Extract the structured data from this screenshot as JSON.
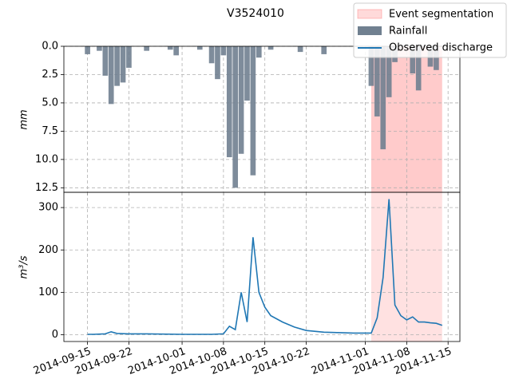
{
  "chart_data": [
    {
      "type": "bar",
      "title": "V3524010",
      "ylabel": "mm",
      "inverted": true,
      "ylim": [
        0,
        12.9
      ],
      "yticks": [
        {
          "value": 0,
          "label": "0.0"
        },
        2.5,
        {
          "value": 5,
          "label": "5.0"
        },
        7.5,
        {
          "value": 10,
          "label": "10.0"
        },
        12.5
      ],
      "xlim": [
        "2014-09-11",
        "2014-11-17"
      ],
      "xticks": [
        "2014-09-15",
        "2014-09-22",
        "2014-10-01",
        "2014-10-08",
        "2014-10-15",
        "2014-10-22",
        "2014-11-01",
        "2014-11-08",
        "2014-11-15"
      ],
      "grid": true,
      "event": {
        "name": "Event segmentation",
        "start": "2014-11-02",
        "end": "2014-11-14",
        "color": "#ff6b6b"
      },
      "x": [
        "2014-09-15",
        "2014-09-17",
        "2014-09-18",
        "2014-09-19",
        "2014-09-20",
        "2014-09-21",
        "2014-09-22",
        "2014-09-25",
        "2014-09-29",
        "2014-09-30",
        "2014-10-04",
        "2014-10-06",
        "2014-10-07",
        "2014-10-08",
        "2014-10-09",
        "2014-10-10",
        "2014-10-11",
        "2014-10-12",
        "2014-10-13",
        "2014-10-14",
        "2014-10-16",
        "2014-10-21",
        "2014-10-25",
        "2014-11-02",
        "2014-11-03",
        "2014-11-04",
        "2014-11-05",
        "2014-11-06",
        "2014-11-09",
        "2014-11-10",
        "2014-11-12",
        "2014-11-13"
      ],
      "series": [
        {
          "name": "Rainfall",
          "color": "#708090",
          "values": [
            0.7,
            0.4,
            2.6,
            5.1,
            3.5,
            3.2,
            1.9,
            0.4,
            0.3,
            0.8,
            0.3,
            1.5,
            2.9,
            0.8,
            9.8,
            12.5,
            9.5,
            4.8,
            11.4,
            1.0,
            0.3,
            0.5,
            0.7,
            3.5,
            6.2,
            9.1,
            4.5,
            1.4,
            2.4,
            3.9,
            1.8,
            2.1
          ]
        }
      ]
    },
    {
      "type": "line",
      "ylabel": "m³/s",
      "ylim": [
        -16,
        336
      ],
      "yticks": [
        0,
        100,
        200,
        300
      ],
      "xlim": [
        "2014-09-11",
        "2014-11-17"
      ],
      "xticks": [
        "2014-09-15",
        "2014-09-22",
        "2014-10-01",
        "2014-10-08",
        "2014-10-15",
        "2014-10-22",
        "2014-11-01",
        "2014-11-08",
        "2014-11-15"
      ],
      "grid": true,
      "x": [
        "2014-09-15",
        "2014-09-16",
        "2014-09-18",
        "2014-09-19",
        "2014-09-20",
        "2014-09-22",
        "2014-09-25",
        "2014-10-01",
        "2014-10-06",
        "2014-10-08",
        "2014-10-09",
        "2014-10-10",
        "2014-10-11",
        "2014-10-12",
        "2014-10-13",
        "2014-10-14",
        "2014-10-15",
        "2014-10-16",
        "2014-10-18",
        "2014-10-20",
        "2014-10-22",
        "2014-10-25",
        "2014-10-30",
        "2014-11-02",
        "2014-11-03",
        "2014-11-04",
        "2014-11-05",
        "2014-11-06",
        "2014-11-07",
        "2014-11-08",
        "2014-11-09",
        "2014-11-10",
        "2014-11-11",
        "2014-11-12",
        "2014-11-13",
        "2014-11-14"
      ],
      "series": [
        {
          "name": "Observed discharge",
          "color": "#1f77b4",
          "values": [
            1,
            1,
            2,
            7,
            3,
            2,
            2,
            1,
            1,
            2,
            20,
            12,
            100,
            30,
            230,
            100,
            65,
            45,
            30,
            18,
            10,
            6,
            4,
            4,
            40,
            135,
            320,
            70,
            45,
            35,
            42,
            30,
            30,
            28,
            27,
            22
          ]
        }
      ]
    }
  ]
}
